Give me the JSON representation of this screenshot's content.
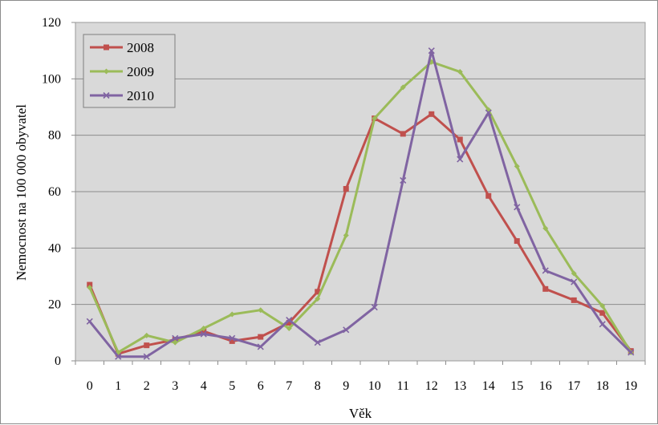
{
  "chart_data": {
    "type": "line",
    "title": "",
    "xlabel": "Věk",
    "ylabel": "Nemocnost na 100 000 obyvatel",
    "ylim": [
      0,
      120
    ],
    "yticks": [
      0,
      20,
      40,
      60,
      80,
      100,
      120
    ],
    "grid": true,
    "legend_position": "top-left",
    "categories": [
      "0",
      "1",
      "2",
      "3",
      "4",
      "5",
      "6",
      "7",
      "8",
      "9",
      "10",
      "11",
      "12",
      "13",
      "14",
      "15",
      "16",
      "17",
      "18",
      "19"
    ],
    "series": [
      {
        "name": "2008",
        "color": "#c0504d",
        "marker": "square",
        "values": [
          27,
          2.5,
          5.5,
          7.5,
          10.5,
          7,
          8.5,
          13.5,
          24.5,
          61,
          86,
          80.5,
          87.5,
          78.5,
          58.5,
          42.5,
          25.5,
          21.5,
          17,
          3.5
        ]
      },
      {
        "name": "2009",
        "color": "#9bbb59",
        "marker": "diamond",
        "values": [
          26,
          3,
          9,
          6.5,
          11.5,
          16.5,
          18,
          11.5,
          22,
          44.5,
          86,
          97,
          106,
          102.5,
          89,
          69,
          47,
          31,
          19.5,
          3
        ]
      },
      {
        "name": "2010",
        "color": "#8064a2",
        "marker": "x",
        "values": [
          14,
          1.5,
          1.5,
          8,
          9.5,
          8,
          5,
          14.5,
          6.5,
          11,
          19,
          64,
          110,
          71.5,
          88,
          54.5,
          32,
          28,
          13,
          3
        ]
      }
    ]
  }
}
